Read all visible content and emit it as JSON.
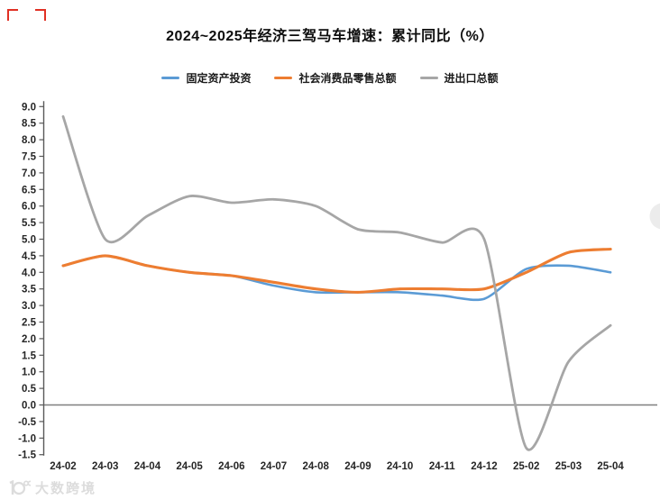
{
  "page": {
    "watermark_text": "大数跨境"
  },
  "chart_data": {
    "type": "line",
    "title": "2024~2025年经济三驾马车增速：累计同比（%）",
    "legend_position": "top",
    "grid": false,
    "zero_line": true,
    "ylim": [
      -1.5,
      9.0
    ],
    "ytick_step": 0.5,
    "y_ticks": [
      "9.0",
      "8.5",
      "8.0",
      "7.5",
      "7.0",
      "6.5",
      "6.0",
      "5.5",
      "5.0",
      "4.5",
      "4.0",
      "3.5",
      "3.0",
      "2.5",
      "2.0",
      "1.5",
      "1.0",
      "0.5",
      "0.0",
      "-0.5",
      "-1.0",
      "-1.5"
    ],
    "categories": [
      "24-02",
      "24-03",
      "24-04",
      "24-05",
      "24-06",
      "24-07",
      "24-08",
      "24-09",
      "24-10",
      "24-11",
      "24-12",
      "25-02",
      "25-03",
      "25-04"
    ],
    "series": [
      {
        "name": "固定资产投资",
        "color": "#5B9BD5",
        "values": [
          4.2,
          4.5,
          4.2,
          4.0,
          3.9,
          3.6,
          3.4,
          3.4,
          3.4,
          3.3,
          3.2,
          4.1,
          4.2,
          4.0
        ]
      },
      {
        "name": "社会消费品零售总额",
        "color": "#ED7D31",
        "values": [
          4.2,
          4.5,
          4.2,
          4.0,
          3.9,
          3.7,
          3.5,
          3.4,
          3.5,
          3.5,
          3.5,
          4.0,
          4.6,
          4.7
        ]
      },
      {
        "name": "进出口总额",
        "color": "#A6A6A6",
        "values": [
          8.7,
          5.0,
          5.7,
          6.3,
          6.1,
          6.2,
          6.0,
          5.3,
          5.2,
          4.9,
          5.0,
          -1.3,
          1.3,
          2.4
        ]
      }
    ],
    "colors": {
      "axis": "#595959",
      "tick_label": "#262626",
      "zero_line": "#7f7f7f",
      "floating_button": "#ececec"
    }
  }
}
